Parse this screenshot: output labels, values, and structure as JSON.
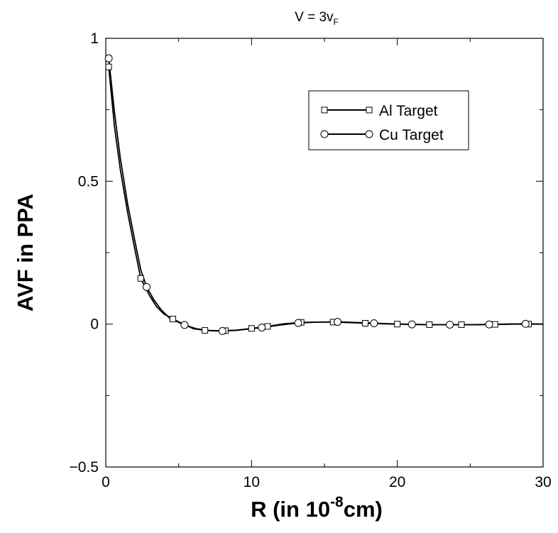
{
  "chart_data": {
    "type": "line",
    "title": "V = 3v",
    "title_sub": "F",
    "xlabel_pre": "R (in 10",
    "xlabel_sup": "-8",
    "xlabel_post": "cm)",
    "ylabel": "AVF in PPA",
    "xlim": [
      0,
      30
    ],
    "ylim": [
      -0.5,
      1
    ],
    "xticks": [
      0,
      10,
      20,
      30
    ],
    "xtick_labels": [
      "0",
      "10",
      "20",
      "30"
    ],
    "yticks": [
      -0.5,
      0,
      0.5,
      1
    ],
    "ytick_labels": [
      "−0.5",
      "0",
      "0.5",
      "1"
    ],
    "grid": false,
    "legend_position": "top-right",
    "series": [
      {
        "name": "Al Target",
        "marker": "square",
        "x": [
          0.2,
          0.6,
          1.0,
          1.5,
          2.0,
          2.4,
          3.0,
          3.5,
          4.0,
          4.6,
          5.2,
          6.0,
          6.8,
          7.6,
          8.2,
          9.0,
          10.0,
          11.1,
          12.2,
          13.4,
          14.5,
          15.6,
          16.8,
          17.8,
          19.0,
          20.0,
          21.0,
          22.2,
          23.4,
          24.4,
          25.5,
          26.7,
          28.0,
          29.0,
          30.0
        ],
        "y": [
          0.9,
          0.69,
          0.54,
          0.39,
          0.26,
          0.16,
          0.1,
          0.06,
          0.035,
          0.018,
          0.003,
          -0.016,
          -0.022,
          -0.024,
          -0.023,
          -0.021,
          -0.015,
          -0.008,
          0.001,
          0.006,
          0.007,
          0.007,
          0.005,
          0.003,
          0.001,
          0.0,
          -0.001,
          -0.002,
          -0.002,
          -0.002,
          -0.002,
          -0.001,
          0.0,
          0.0,
          0.0
        ]
      },
      {
        "name": "Cu Target",
        "marker": "circle",
        "x": [
          0.2,
          0.6,
          1.0,
          1.5,
          2.0,
          2.4,
          2.8,
          3.3,
          3.8,
          4.4,
          5.4,
          6.2,
          7.0,
          8.0,
          9.0,
          10.0,
          10.7,
          12.0,
          13.2,
          14.5,
          15.9,
          17.0,
          18.4,
          19.6,
          21.0,
          22.3,
          23.6,
          25.0,
          26.3,
          27.6,
          28.8,
          30.0
        ],
        "y": [
          0.93,
          0.74,
          0.58,
          0.42,
          0.29,
          0.19,
          0.13,
          0.085,
          0.05,
          0.02,
          -0.003,
          -0.016,
          -0.022,
          -0.024,
          -0.022,
          -0.016,
          -0.012,
          -0.003,
          0.004,
          0.007,
          0.008,
          0.006,
          0.003,
          0.001,
          -0.001,
          -0.002,
          -0.002,
          -0.002,
          -0.001,
          0.0,
          0.001,
          0.0
        ]
      }
    ]
  }
}
